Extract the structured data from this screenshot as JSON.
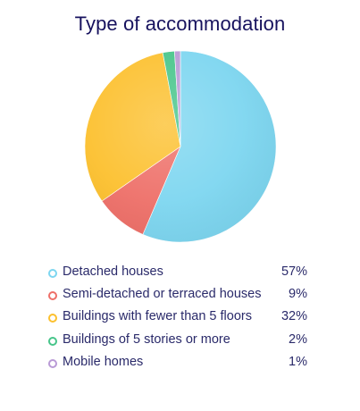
{
  "chart_data": {
    "type": "pie",
    "title": "Type of accommodation",
    "categories": [
      "Detached houses",
      "Semi-detached or terraced houses",
      "Buildings with fewer than 5 floors",
      "Buildings of 5 stories or more",
      "Mobile homes"
    ],
    "values": [
      57,
      9,
      32,
      2,
      1
    ],
    "value_labels": [
      "57%",
      "9%",
      "32%",
      "2%",
      "1%"
    ],
    "colors": [
      "#7dd6f0",
      "#ee6f68",
      "#fcc02e",
      "#47c58a",
      "#b99ad6"
    ],
    "legend_position": "bottom",
    "start_angle_deg": 0,
    "direction": "clockwise"
  }
}
